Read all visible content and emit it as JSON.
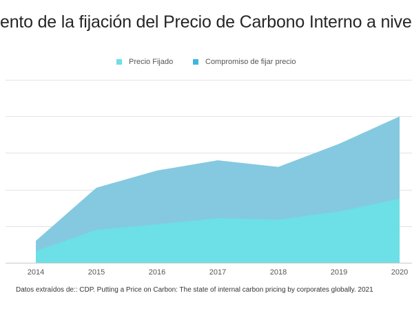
{
  "chart_data": {
    "type": "area",
    "title": "ento de la fijación del Precio de Carbono Interno a nivel",
    "x": [
      "2014",
      "2015",
      "2016",
      "2017",
      "2018",
      "2019",
      "2020"
    ],
    "series": [
      {
        "name": "Precio Fijado",
        "values": [
          32,
          90,
          105,
          122,
          118,
          140,
          175
        ],
        "color": "#6ddfe6"
      },
      {
        "name": "Compromiso de fijar precio",
        "values": [
          60,
          205,
          252,
          280,
          262,
          325,
          400
        ],
        "color": "#84c9e0"
      }
    ],
    "stacked": false,
    "ylim": [
      0,
      500
    ],
    "grid": true,
    "legend_position": "top-center",
    "xlabel": "",
    "ylabel": "",
    "source": "Datos extraídos de:: CDP. Putting a Price on Carbon: The state of internal carbon pricing by corporates globally. 2021"
  }
}
